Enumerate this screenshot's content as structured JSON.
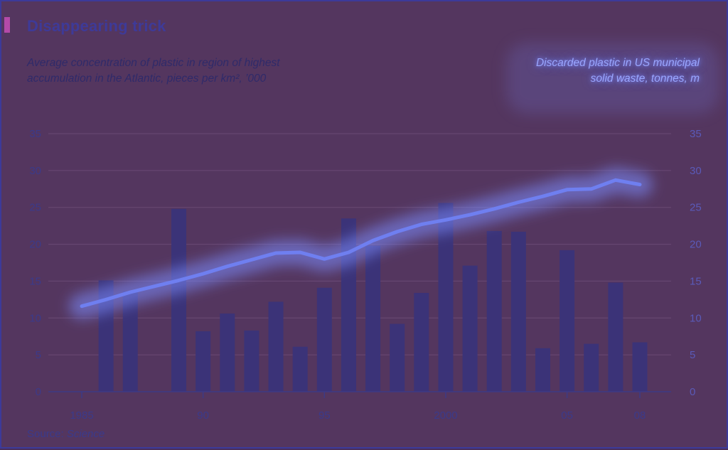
{
  "title": "Disappearing trick",
  "source_label": "Source: ",
  "source_name": "Science",
  "left_axis_title": "Average concentration of plastic in region of highest accumulation in the Atlantic, pieces per km², ’000",
  "right_axis_title": "Discarded plastic in US municipal solid waste, tonnes, m",
  "colors": {
    "background": "#54365f",
    "bars": "#3b3378",
    "line": "#6f7ff0",
    "line_glow": "#7b8cff",
    "accent": "#b44aa8",
    "grid": "#6a4a74"
  },
  "chart_data": {
    "type": "bar+line",
    "x_ticks": [
      "1985",
      "90",
      "95",
      "2000",
      "05",
      "08"
    ],
    "y_ticks_left": [
      "0",
      "5",
      "10",
      "15",
      "20",
      "25",
      "30",
      "35"
    ],
    "y_ticks_right": [
      "0",
      "5",
      "10",
      "15",
      "20",
      "25",
      "30",
      "35"
    ],
    "ylim": [
      0,
      35
    ],
    "xlim": [
      1985,
      2008
    ],
    "grid": true,
    "bars": {
      "x": [
        1986,
        1987,
        1989,
        1990,
        1991,
        1992,
        1993,
        1994,
        1995,
        1996,
        1997,
        1998,
        1999,
        2000,
        2001,
        2002,
        2003,
        2004,
        2005,
        2006,
        2007,
        2008
      ],
      "values": [
        15.1,
        13.6,
        24.8,
        8.2,
        10.6,
        8.3,
        12.2,
        6.1,
        14.1,
        23.5,
        19.8,
        9.2,
        13.4,
        25.6,
        17.1,
        21.8,
        21.7,
        5.9,
        19.2,
        6.5,
        14.8,
        6.7
      ]
    },
    "line": {
      "x": [
        1985,
        1986,
        1987,
        1988,
        1989,
        1990,
        1991,
        1992,
        1993,
        1994,
        1995,
        1996,
        1997,
        1998,
        1999,
        2000,
        2001,
        2002,
        2003,
        2004,
        2005,
        2006,
        2007,
        2008
      ],
      "values": [
        11.6,
        12.5,
        13.5,
        14.3,
        15.1,
        16.0,
        17.0,
        17.9,
        18.8,
        18.9,
        18.0,
        18.9,
        20.5,
        21.7,
        22.7,
        23.3,
        24.0,
        24.8,
        25.7,
        26.5,
        27.4,
        27.5,
        28.7,
        28.1
      ]
    }
  }
}
